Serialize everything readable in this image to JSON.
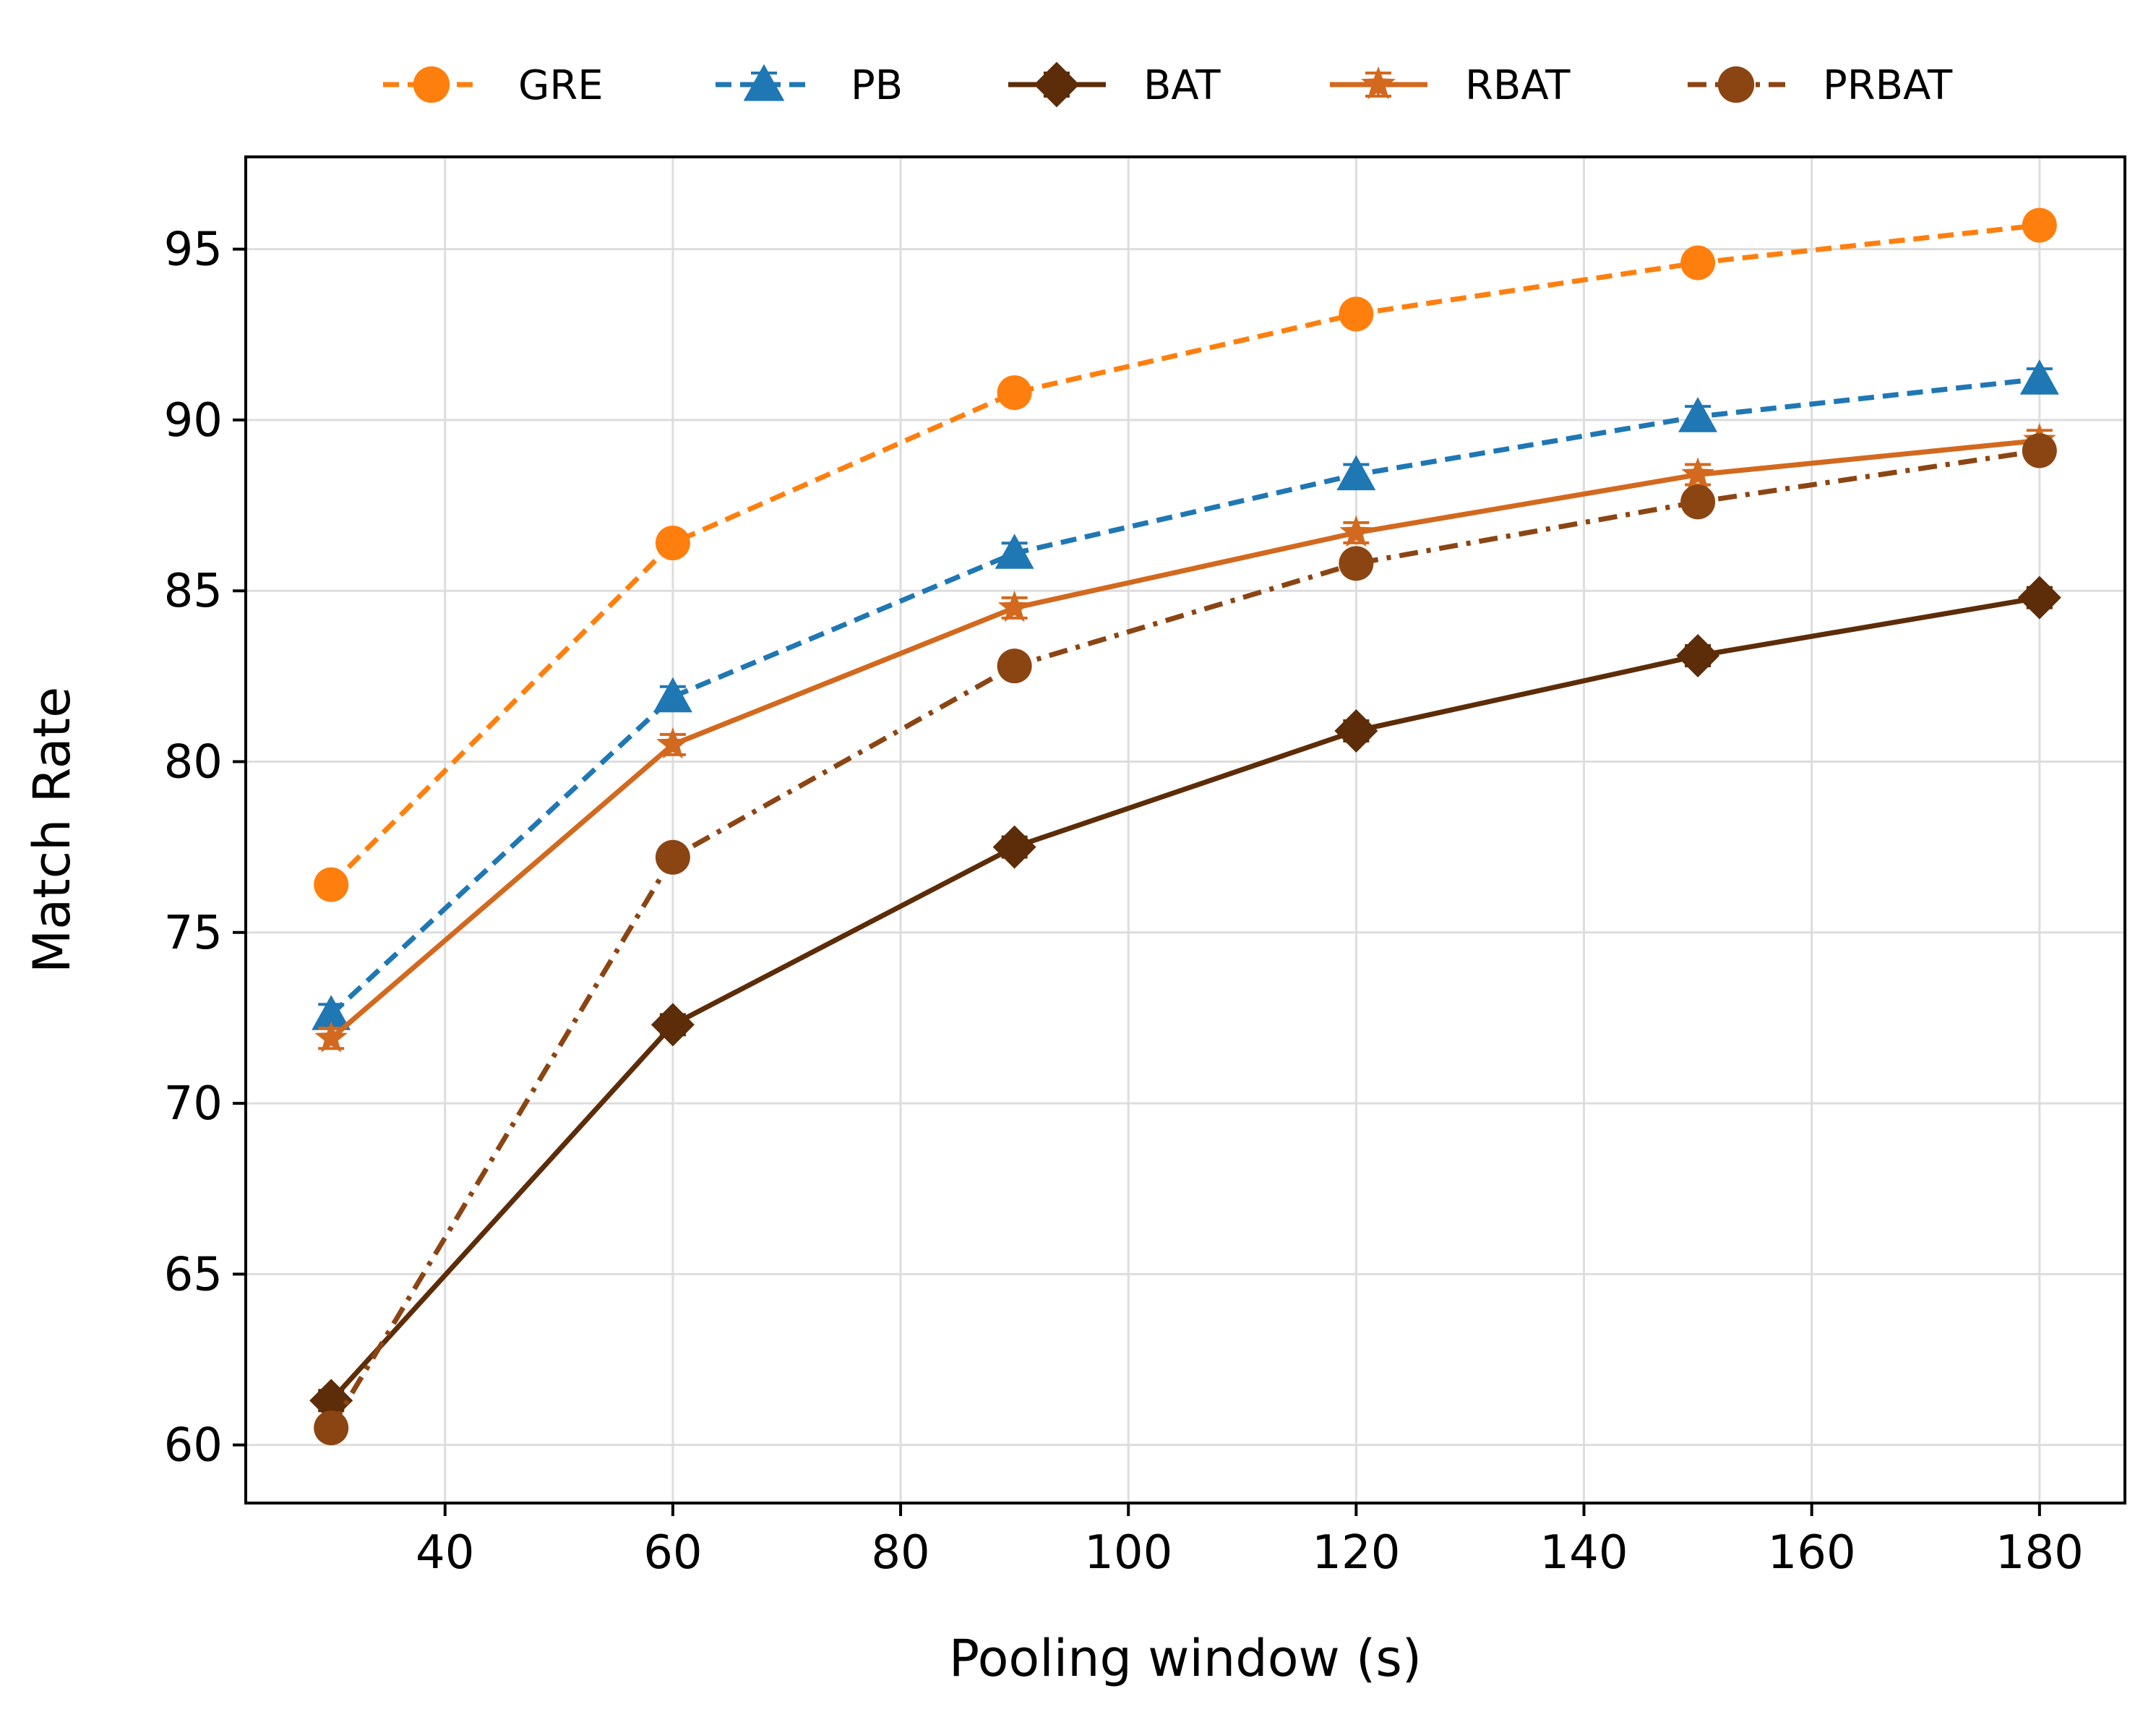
{
  "chart_data": {
    "type": "line",
    "title": "",
    "xlabel": "Pooling window (s)",
    "ylabel": "Match Rate",
    "xlim": [
      22.5,
      187.5
    ],
    "ylim": [
      58.3,
      97.7
    ],
    "xticks": [
      40,
      60,
      80,
      100,
      120,
      140,
      160,
      180
    ],
    "yticks": [
      60,
      65,
      70,
      75,
      80,
      85,
      90,
      95
    ],
    "xtick_labels": [
      "40",
      "60",
      "80",
      "100",
      "120",
      "140",
      "160",
      "180"
    ],
    "ytick_labels": [
      "60",
      "65",
      "70",
      "75",
      "80",
      "85",
      "90",
      "95"
    ],
    "grid": true,
    "legend_position": "top, above plot",
    "x": [
      30,
      60,
      90,
      120,
      150,
      180
    ],
    "series": [
      {
        "name": "GRE",
        "values": [
          76.4,
          86.4,
          90.8,
          93.1,
          94.6,
          95.7
        ],
        "color": "#ff7f0e",
        "linestyle": "dashed",
        "marker": "circle"
      },
      {
        "name": "PB",
        "values": [
          72.6,
          81.9,
          86.1,
          88.4,
          90.1,
          91.2
        ],
        "color": "#1f77b4",
        "linestyle": "dashed",
        "marker": "triangle"
      },
      {
        "name": "BAT",
        "values": [
          61.3,
          72.3,
          77.5,
          80.9,
          83.1,
          84.8
        ],
        "color": "#5c2d08",
        "linestyle": "solid",
        "marker": "diamond"
      },
      {
        "name": "RBAT",
        "values": [
          71.9,
          80.5,
          84.5,
          86.7,
          88.4,
          89.4
        ],
        "color": "#d2691e",
        "linestyle": "solid",
        "marker": "star"
      },
      {
        "name": "PRBAT",
        "values": [
          60.5,
          77.2,
          82.8,
          85.8,
          87.6,
          89.1
        ],
        "color": "#8b4513",
        "linestyle": "dashdot",
        "marker": "circle"
      }
    ]
  }
}
